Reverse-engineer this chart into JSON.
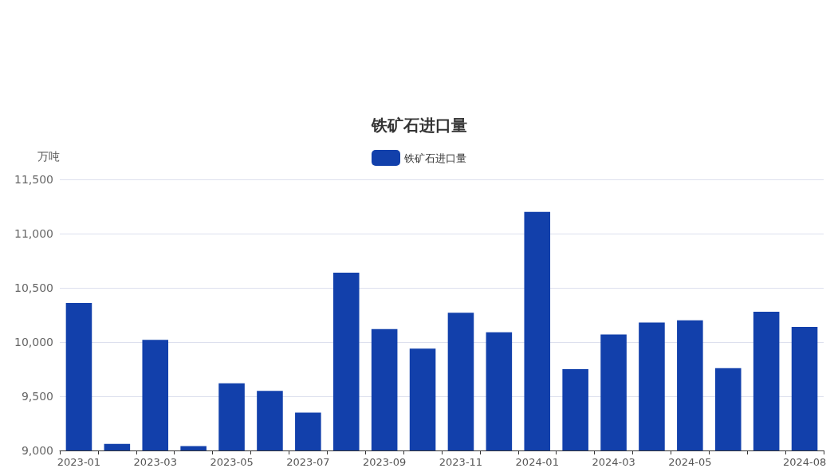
{
  "chart_data": {
    "type": "bar",
    "title": "铁矿石进口量",
    "ylabel": "万吨",
    "categories": [
      "2023-01",
      null,
      "2023-03",
      null,
      "2023-05",
      null,
      "2023-07",
      null,
      "2023-09",
      null,
      "2023-11",
      null,
      "2024-01",
      null,
      "2024-03",
      null,
      "2024-05",
      null,
      null,
      "2024-08"
    ],
    "series": [
      {
        "name": "铁矿石进口量",
        "color": "#1240ab",
        "values": [
          10360,
          9060,
          10020,
          9040,
          9620,
          9550,
          9350,
          10640,
          10120,
          9940,
          10270,
          10090,
          11200,
          9750,
          10070,
          10180,
          10200,
          9760,
          10280,
          10140
        ]
      }
    ],
    "ylim": [
      9000,
      11500
    ],
    "yticks": [
      {
        "value": 9000,
        "label": "9,000"
      },
      {
        "value": 9500,
        "label": "9,500"
      },
      {
        "value": 10000,
        "label": "10,000"
      },
      {
        "value": 10500,
        "label": "10,500"
      },
      {
        "value": 11000,
        "label": "11,000"
      },
      {
        "value": 11500,
        "label": "11,500"
      }
    ],
    "grid": "y",
    "legend": "top"
  }
}
